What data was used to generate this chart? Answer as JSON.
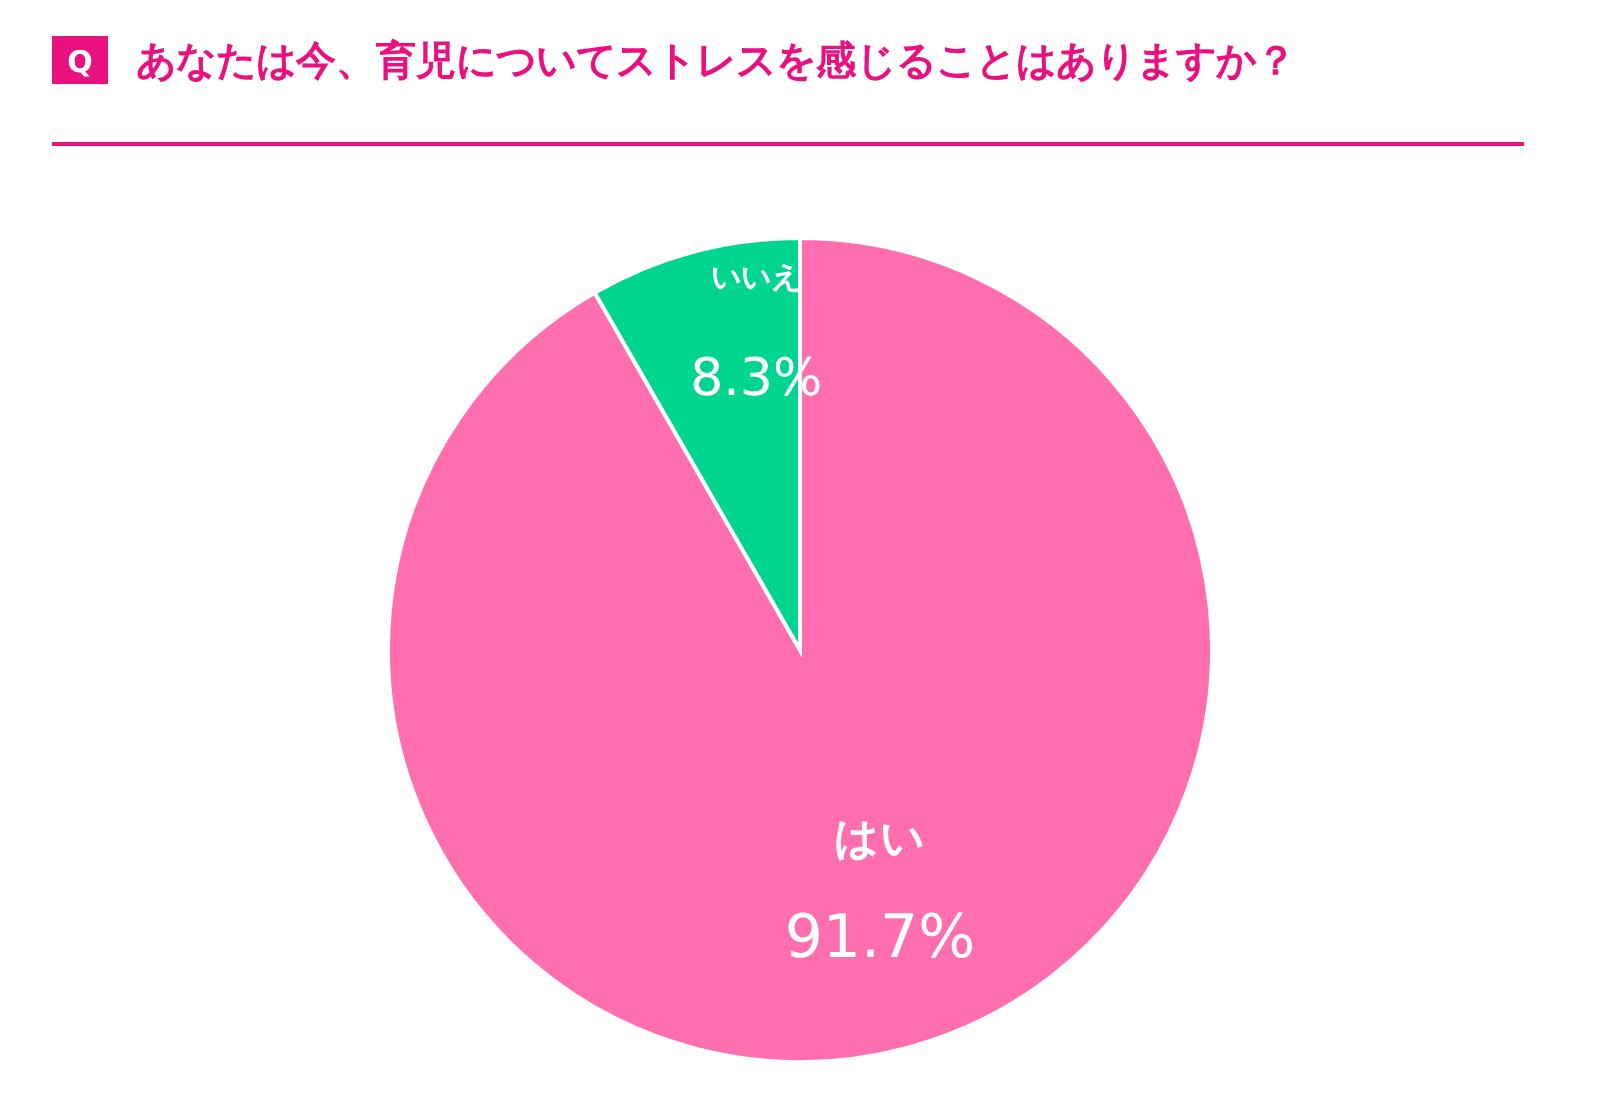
{
  "chart_data": {
    "type": "pie",
    "title": "あなたは今、育児についてストレスを感じることはありますか？",
    "annotations": [
      "Q"
    ],
    "categories": [
      "はい",
      "いいえ"
    ],
    "values": [
      91.7,
      8.3
    ],
    "colors": [
      "#ff6eaf",
      "#00d590"
    ],
    "value_labels": [
      "91.7%",
      "8.3%"
    ]
  }
}
